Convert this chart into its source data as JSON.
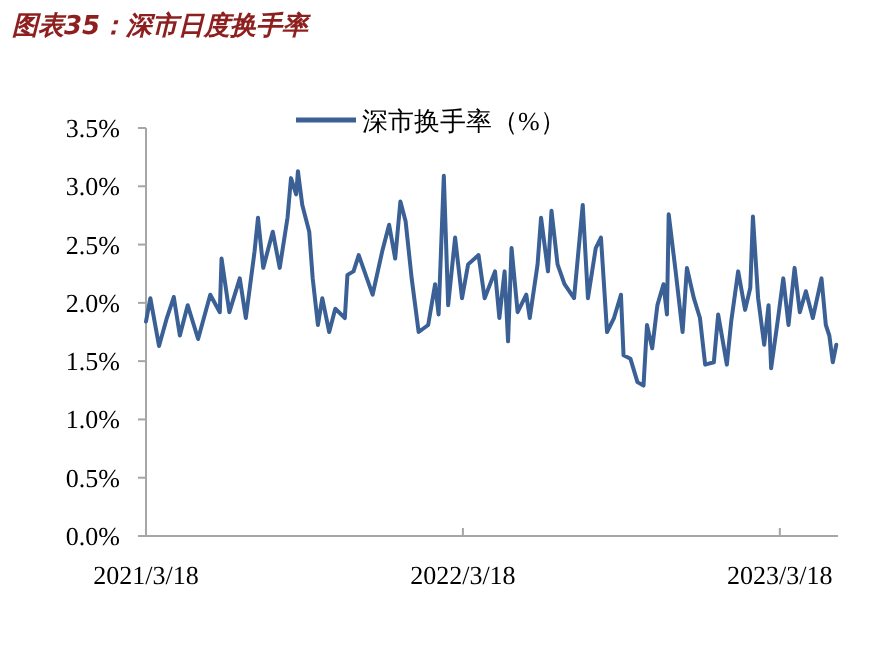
{
  "chart_data": {
    "type": "line",
    "title": "图表35：深市日度换手率",
    "legend": "top",
    "grid": false,
    "xlim": [
      "2021-03-18",
      "2023-05-24"
    ],
    "xticks": [
      {
        "value": "2021-03-18",
        "label": "2021/3/18"
      },
      {
        "value": "2022-03-18",
        "label": "2022/3/18"
      },
      {
        "value": "2023-03-18",
        "label": "2023/3/18"
      }
    ],
    "ylim": [
      0,
      3.5
    ],
    "yticks": [
      {
        "value": 0,
        "label": "0.0%"
      },
      {
        "value": 0.5,
        "label": "0.5%"
      },
      {
        "value": 1,
        "label": "1.0%"
      },
      {
        "value": 1.5,
        "label": "1.5%"
      },
      {
        "value": 2,
        "label": "2.0%"
      },
      {
        "value": 2.5,
        "label": "2.5%"
      },
      {
        "value": 3,
        "label": "3.0%"
      },
      {
        "value": 3.5,
        "label": "3.5%"
      }
    ],
    "x": [
      "2021-03-18",
      "2021-03-23",
      "2021-04-02",
      "2021-04-11",
      "2021-04-19",
      "2021-04-26",
      "2021-05-05",
      "2021-05-17",
      "2021-05-31",
      "2021-06-11",
      "2021-06-13",
      "2021-06-22",
      "2021-07-04",
      "2021-07-11",
      "2021-07-21",
      "2021-07-25",
      "2021-07-31",
      "2021-08-11",
      "2021-08-19",
      "2021-08-28",
      "2021-09-01",
      "2021-09-07",
      "2021-09-09",
      "2021-09-14",
      "2021-09-22",
      "2021-09-26",
      "2021-10-02",
      "2021-10-07",
      "2021-10-15",
      "2021-10-22",
      "2021-11-02",
      "2021-11-05",
      "2021-11-12",
      "2021-11-18",
      "2021-12-04",
      "2021-12-15",
      "2021-12-23",
      "2021-12-30",
      "2022-01-05",
      "2022-01-11",
      "2022-01-18",
      "2022-01-26",
      "2022-02-06",
      "2022-02-14",
      "2022-02-18",
      "2022-02-24",
      "2022-03-01",
      "2022-03-09",
      "2022-03-17",
      "2022-03-24",
      "2022-04-05",
      "2022-04-12",
      "2022-04-24",
      "2022-04-29",
      "2022-05-05",
      "2022-05-09",
      "2022-05-13",
      "2022-05-20",
      "2022-05-30",
      "2022-06-03",
      "2022-06-12",
      "2022-06-16",
      "2022-06-24",
      "2022-06-28",
      "2022-07-05",
      "2022-07-13",
      "2022-07-24",
      "2022-08-03",
      "2022-08-09",
      "2022-08-18",
      "2022-08-24",
      "2022-08-31",
      "2022-09-08",
      "2022-09-16",
      "2022-09-19",
      "2022-09-27",
      "2022-10-05",
      "2022-10-12",
      "2022-10-16",
      "2022-10-22",
      "2022-10-28",
      "2022-11-04",
      "2022-11-08",
      "2022-11-10",
      "2022-11-18",
      "2022-11-26",
      "2022-12-01",
      "2022-12-09",
      "2022-12-16",
      "2022-12-22",
      "2023-01-01",
      "2023-01-06",
      "2023-01-16",
      "2023-01-21",
      "2023-01-29",
      "2023-02-06",
      "2023-02-12",
      "2023-02-15",
      "2023-02-21",
      "2023-02-28",
      "2023-03-05",
      "2023-03-08",
      "2023-03-16",
      "2023-03-22",
      "2023-03-28",
      "2023-04-04",
      "2023-04-10",
      "2023-04-17",
      "2023-04-25",
      "2023-05-05",
      "2023-05-10",
      "2023-05-14",
      "2023-05-18",
      "2023-05-22"
    ],
    "series": [
      {
        "name": "深市换手率（%）",
        "color": "#3a6096",
        "values": [
          1.84,
          2.04,
          1.63,
          1.87,
          2.05,
          1.72,
          1.98,
          1.69,
          2.07,
          1.92,
          2.38,
          1.92,
          2.21,
          1.87,
          2.44,
          2.73,
          2.3,
          2.61,
          2.3,
          2.73,
          3.07,
          2.93,
          3.13,
          2.84,
          2.61,
          2.21,
          1.81,
          2.04,
          1.75,
          1.95,
          1.87,
          2.24,
          2.27,
          2.41,
          2.07,
          2.44,
          2.67,
          2.38,
          2.87,
          2.7,
          2.21,
          1.75,
          1.81,
          2.16,
          1.9,
          3.09,
          1.98,
          2.56,
          2.04,
          2.33,
          2.41,
          2.04,
          2.27,
          1.87,
          2.27,
          1.67,
          2.47,
          1.92,
          2.07,
          1.87,
          2.33,
          2.73,
          2.27,
          2.79,
          2.33,
          2.16,
          2.04,
          2.84,
          2.04,
          2.47,
          2.56,
          1.75,
          1.87,
          2.07,
          1.55,
          1.52,
          1.32,
          1.29,
          1.81,
          1.61,
          1.98,
          2.16,
          1.9,
          2.76,
          2.27,
          1.75,
          2.3,
          2.04,
          1.87,
          1.47,
          1.49,
          1.9,
          1.47,
          1.84,
          2.27,
          1.94,
          2.13,
          2.74,
          2.04,
          1.64,
          1.98,
          1.44,
          1.87,
          2.21,
          1.81,
          2.3,
          1.92,
          2.1,
          1.87,
          2.21,
          1.81,
          1.72,
          1.49,
          1.64
        ]
      }
    ]
  }
}
